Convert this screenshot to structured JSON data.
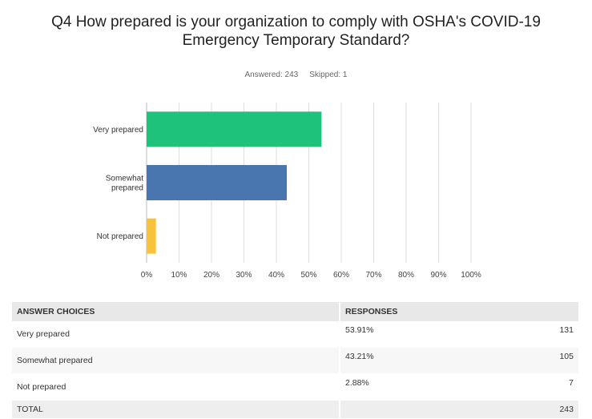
{
  "question": {
    "title_line1": "Q4 How prepared is your organization to comply with OSHA's COVID-19",
    "title_line2": "Emergency Temporary Standard?",
    "answered_label": "Answered: 243",
    "skipped_label": "Skipped: 1"
  },
  "chart_data": {
    "type": "bar",
    "orientation": "horizontal",
    "categories": [
      "Very prepared",
      "Somewhat prepared",
      "Not prepared"
    ],
    "category_lines": [
      [
        "Very prepared"
      ],
      [
        "Somewhat",
        "prepared"
      ],
      [
        "Not prepared"
      ]
    ],
    "values": [
      53.91,
      43.21,
      2.88
    ],
    "colors": [
      "#1fc27a",
      "#4a76b0",
      "#f7c23c"
    ],
    "xlim": [
      0,
      100
    ],
    "xticks": [
      "0%",
      "10%",
      "20%",
      "30%",
      "40%",
      "50%",
      "60%",
      "70%",
      "80%",
      "90%",
      "100%"
    ],
    "grid": true
  },
  "table": {
    "headers": [
      "ANSWER CHOICES",
      "RESPONSES"
    ],
    "rows": [
      {
        "choice": "Very prepared",
        "percent": "53.91%",
        "count": "131"
      },
      {
        "choice": "Somewhat prepared",
        "percent": "43.21%",
        "count": "105"
      },
      {
        "choice": "Not prepared",
        "percent": "2.88%",
        "count": "7"
      }
    ],
    "total_label": "TOTAL",
    "total_count": "243"
  }
}
